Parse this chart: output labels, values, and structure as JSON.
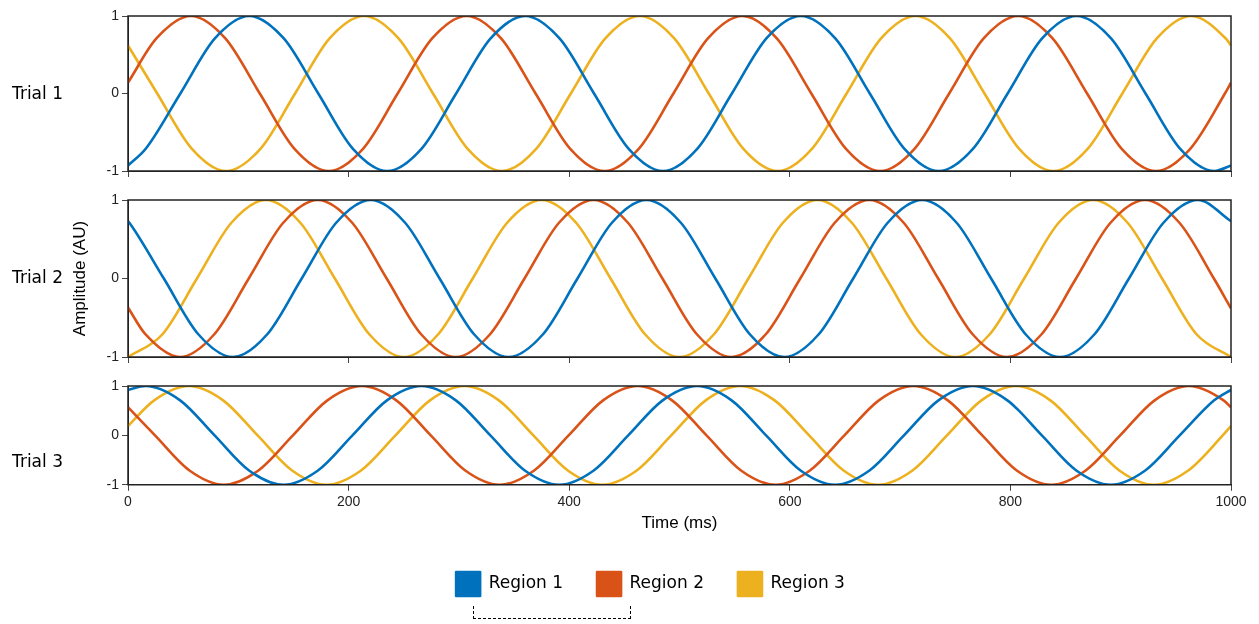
{
  "chart_data": [
    {
      "type": "line",
      "title": "Trial 1",
      "xlim": [
        0,
        1000
      ],
      "xticks": [
        0,
        200,
        400,
        600,
        800,
        1000
      ],
      "ylim": [
        -1,
        1
      ],
      "yticks": [
        -1,
        0,
        1
      ],
      "tick_labels": "y",
      "grid": false,
      "marker": "none",
      "line_style": "solid",
      "series": [
        {
          "color": "#0072bd",
          "x": [
            0,
            16.25,
            47.5,
            78.75,
            110,
            141.25,
            172.5,
            203.75,
            235,
            266.25,
            297.5,
            328.75,
            360,
            391.25,
            422.5,
            453.75,
            485,
            516.25,
            547.5,
            578.75,
            610,
            641.25,
            672.5,
            703.75,
            735,
            766.25,
            797.5,
            828.75,
            860,
            891.25,
            922.5,
            953.75,
            985,
            1000
          ],
          "values": [
            -0.93,
            -0.71,
            0,
            0.71,
            1,
            0.71,
            0,
            -0.71,
            -1,
            -0.71,
            0,
            0.71,
            1,
            0.71,
            0,
            -0.71,
            -1,
            -0.71,
            0,
            0.71,
            1,
            0.71,
            0,
            -0.71,
            -1,
            -0.71,
            0,
            0.71,
            1,
            0.71,
            0,
            -0.71,
            -1,
            -0.93
          ]
        },
        {
          "color": "#d95319",
          "x": [
            0,
            25.75,
            57,
            88.25,
            119.5,
            150.75,
            182,
            213.25,
            244.5,
            275.75,
            307,
            338.25,
            369.5,
            400.75,
            432,
            463.25,
            494.5,
            525.75,
            557,
            588.25,
            619.5,
            650.75,
            682,
            713.25,
            744.5,
            775.75,
            807,
            838.25,
            869.5,
            900.75,
            932,
            963.25,
            994.5,
            1000
          ],
          "values": [
            0.14,
            0.71,
            1,
            0.71,
            0,
            -0.71,
            -1,
            -0.71,
            0,
            0.71,
            1,
            0.71,
            0,
            -0.71,
            -1,
            -0.71,
            0,
            0.71,
            1,
            0.71,
            0,
            -0.71,
            -1,
            -0.71,
            0,
            0.71,
            1,
            0.71,
            0,
            -0.71,
            -1,
            -0.71,
            0,
            0.14
          ]
        },
        {
          "color": "#edb120",
          "x": [
            0,
            26.5,
            57.75,
            89,
            120.25,
            151.5,
            182.75,
            214,
            245.25,
            276.5,
            307.75,
            339,
            370.25,
            401.5,
            432.75,
            464,
            495.25,
            526.5,
            557.75,
            589,
            620.25,
            651.5,
            682.75,
            714,
            745.25,
            776.5,
            807.75,
            839,
            870.25,
            901.5,
            932.75,
            964,
            995.25,
            1000
          ],
          "values": [
            0.62,
            0,
            -0.71,
            -1,
            -0.71,
            0,
            0.71,
            1,
            0.71,
            0,
            -0.71,
            -1,
            -0.71,
            0,
            0.71,
            1,
            0.71,
            0,
            -0.71,
            -1,
            -0.71,
            0,
            0.71,
            1,
            0.71,
            0,
            -0.71,
            -1,
            -0.71,
            0,
            0.71,
            1,
            0.71,
            0.62
          ]
        }
      ]
    },
    {
      "type": "line",
      "title": "Trial 2",
      "ylabel": "Amplitude (AU)",
      "xlim": [
        0,
        1000
      ],
      "xticks": [
        0,
        200,
        400,
        600,
        800,
        1000
      ],
      "ylim": [
        -1,
        1
      ],
      "yticks": [
        -1,
        0,
        1
      ],
      "tick_labels": "y",
      "grid": false,
      "marker": "none",
      "line_style": "solid",
      "series": [
        {
          "color": "#0072bd",
          "x": [
            0,
            1.25,
            32.5,
            63.75,
            95,
            126.25,
            157.5,
            188.75,
            220,
            251.25,
            282.5,
            313.75,
            345,
            376.25,
            407.5,
            438.75,
            470,
            501.25,
            532.5,
            563.75,
            595,
            626.25,
            657.5,
            688.75,
            720,
            751.25,
            782.5,
            813.75,
            845,
            876.25,
            907.5,
            938.75,
            970,
            1000
          ],
          "values": [
            0.73,
            0.71,
            0,
            -0.71,
            -1,
            -0.71,
            0,
            0.71,
            1,
            0.71,
            0,
            -0.71,
            -1,
            -0.71,
            0,
            0.71,
            1,
            0.71,
            0,
            -0.71,
            -1,
            -0.71,
            0,
            0.71,
            1,
            0.71,
            0,
            -0.71,
            -1,
            -0.71,
            0,
            0.71,
            1,
            0.73
          ]
        },
        {
          "color": "#d95319",
          "x": [
            0,
            15.75,
            47,
            78.25,
            109.5,
            140.75,
            172,
            203.25,
            234.5,
            265.75,
            297,
            328.25,
            359.5,
            390.75,
            422,
            453.25,
            484.5,
            515.75,
            547,
            578.25,
            609.5,
            640.75,
            672,
            703.25,
            734.5,
            765.75,
            797,
            828.25,
            859.5,
            890.75,
            922,
            953.25,
            984.5,
            1000
          ],
          "values": [
            -0.37,
            -0.71,
            -1,
            -0.71,
            0,
            0.71,
            1,
            0.71,
            0,
            -0.71,
            -1,
            -0.71,
            0,
            0.71,
            1,
            0.71,
            0,
            -0.71,
            -1,
            -0.71,
            0,
            0.71,
            1,
            0.71,
            0,
            -0.71,
            -1,
            -0.71,
            0,
            0.71,
            1,
            0.71,
            0,
            -0.38
          ]
        },
        {
          "color": "#edb120",
          "x": [
            0,
            31.25,
            62.5,
            93.75,
            125,
            156.25,
            187.5,
            218.75,
            250,
            281.25,
            312.5,
            343.75,
            375,
            406.25,
            437.5,
            468.75,
            500,
            531.25,
            562.5,
            593.75,
            625,
            656.25,
            687.5,
            718.75,
            750,
            781.25,
            812.5,
            843.75,
            875,
            906.25,
            937.5,
            968.75,
            1000
          ],
          "values": [
            -1,
            -0.71,
            0,
            0.71,
            1,
            0.71,
            0,
            -0.71,
            -1,
            -0.71,
            0,
            0.71,
            1,
            0.71,
            0,
            -0.71,
            -1,
            -0.71,
            0,
            0.71,
            1,
            0.71,
            0,
            -0.71,
            -1,
            -0.71,
            0,
            0.71,
            1,
            0.71,
            0,
            -0.71,
            -1
          ]
        }
      ]
    },
    {
      "type": "line",
      "title": "Trial 3",
      "xlabel": "Time (ms)",
      "xlim": [
        0,
        1000
      ],
      "xticks": [
        0,
        200,
        400,
        600,
        800,
        1000
      ],
      "ylim": [
        -1,
        1
      ],
      "yticks": [
        -1,
        0,
        1
      ],
      "grid": false,
      "marker": "none",
      "line_style": "solid",
      "legend": "bottom",
      "series": [
        {
          "name": "Region 1",
          "color": "#0072bd",
          "x": [
            0,
            16,
            47.25,
            78.5,
            109.75,
            141,
            172.25,
            203.5,
            234.75,
            266,
            297.25,
            328.5,
            359.75,
            391,
            422.25,
            453.5,
            484.75,
            516,
            547.25,
            578.5,
            609.75,
            641,
            672.25,
            703.5,
            734.75,
            766,
            797.25,
            828.5,
            859.75,
            891,
            922.25,
            953.5,
            984.75,
            1000
          ],
          "values": [
            0.92,
            1,
            0.71,
            0,
            -0.71,
            -1,
            -0.71,
            0,
            0.71,
            1,
            0.71,
            0,
            -0.71,
            -1,
            -0.71,
            0,
            0.71,
            1,
            0.71,
            0,
            -0.71,
            -1,
            -0.71,
            0,
            0.71,
            1,
            0.71,
            0,
            -0.71,
            -1,
            -0.71,
            0,
            0.71,
            0.92
          ]
        },
        {
          "name": "Region 2",
          "color": "#d95319",
          "x": [
            0,
            24.5,
            55.75,
            87,
            118.25,
            149.5,
            180.75,
            212,
            243.25,
            274.5,
            305.75,
            337,
            368.25,
            399.5,
            430.75,
            462,
            493.25,
            524.5,
            555.75,
            587,
            618.25,
            649.5,
            680.75,
            712,
            743.25,
            774.5,
            805.75,
            837,
            868.25,
            899.5,
            930.75,
            962,
            993.25,
            1000
          ],
          "values": [
            0.57,
            0,
            -0.71,
            -1,
            -0.71,
            0,
            0.71,
            1,
            0.71,
            0,
            -0.71,
            -1,
            -0.71,
            0,
            0.71,
            1,
            0.71,
            0,
            -0.71,
            -1,
            -0.71,
            0,
            0.71,
            1,
            0.71,
            0,
            -0.71,
            -1,
            -0.71,
            0,
            0.71,
            1,
            0.71,
            0.57
          ]
        },
        {
          "name": "Region 3",
          "color": "#edb120",
          "x": [
            0,
            23.75,
            55,
            86.25,
            117.5,
            148.75,
            180,
            211.25,
            242.5,
            273.75,
            305,
            336.25,
            367.5,
            398.75,
            430,
            461.25,
            492.5,
            523.75,
            555,
            586.25,
            617.5,
            648.75,
            680,
            711.25,
            742.5,
            773.75,
            805,
            836.25,
            867.5,
            898.75,
            930,
            961.25,
            992.5,
            1000
          ],
          "values": [
            0.19,
            0.71,
            1,
            0.71,
            0,
            -0.71,
            -1,
            -0.71,
            0,
            0.71,
            1,
            0.71,
            0,
            -0.71,
            -1,
            -0.71,
            0,
            0.71,
            1,
            0.71,
            0,
            -0.71,
            -1,
            -0.71,
            0,
            0.71,
            1,
            0.71,
            0,
            -0.71,
            -1,
            -0.71,
            0,
            0.19
          ]
        }
      ]
    }
  ]
}
